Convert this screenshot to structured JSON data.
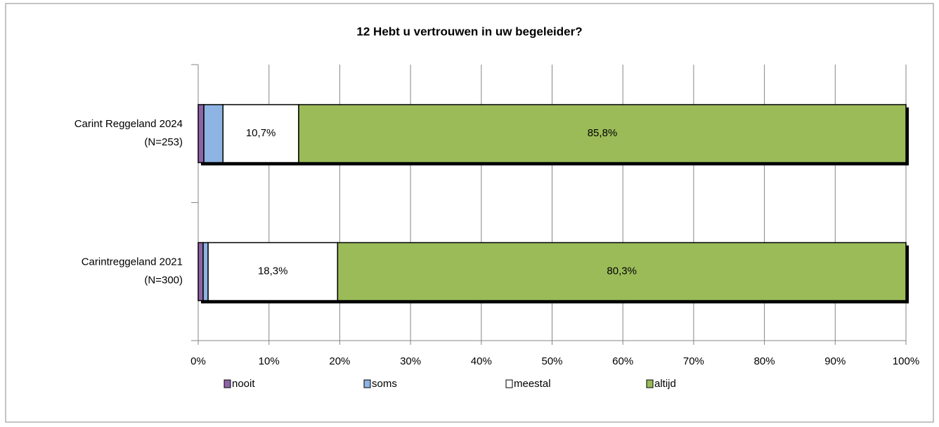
{
  "chart_data": {
    "type": "stacked-bar-horizontal",
    "title": "12 Hebt u vertrouwen in uw begeleider?",
    "categories": [
      [
        "Carint Reggeland 2024",
        "(N=253)"
      ],
      [
        "Carintreggeland 2021",
        "(N=300)"
      ]
    ],
    "series": [
      {
        "name": "nooit",
        "color": "#8e63a8",
        "values": [
          0.8,
          0.7
        ]
      },
      {
        "name": "soms",
        "color": "#8db4e2",
        "values": [
          2.7,
          0.7
        ]
      },
      {
        "name": "meestal",
        "color": "#ffffff",
        "values": [
          10.7,
          18.3
        ],
        "value_labels": [
          "10,7%",
          "18,3%"
        ]
      },
      {
        "name": "altijd",
        "color": "#9bbb59",
        "values": [
          85.8,
          80.3
        ],
        "value_labels": [
          "85,8%",
          "80,3%"
        ]
      }
    ],
    "xlim": [
      0,
      100
    ],
    "xticks": [
      {
        "value": 0,
        "label": "0%"
      },
      {
        "value": 10,
        "label": "10%"
      },
      {
        "value": 20,
        "label": "20%"
      },
      {
        "value": 30,
        "label": "30%"
      },
      {
        "value": 40,
        "label": "40%"
      },
      {
        "value": 50,
        "label": "50%"
      },
      {
        "value": 60,
        "label": "60%"
      },
      {
        "value": 70,
        "label": "70%"
      },
      {
        "value": 80,
        "label": "80%"
      },
      {
        "value": 90,
        "label": "90%"
      },
      {
        "value": 100,
        "label": "100%"
      }
    ],
    "grid": true,
    "legend": "bottom"
  }
}
